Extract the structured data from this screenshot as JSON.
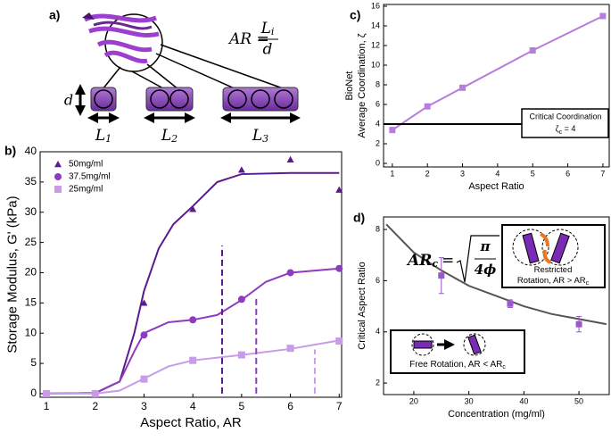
{
  "panel_a": {
    "panel_label": "a)",
    "formula": {
      "lhs": "AR",
      "eq": "=",
      "num": "L",
      "num_sub": "i",
      "den": "d"
    },
    "d_label": "d",
    "lengths": [
      {
        "base": "L",
        "sub": "1"
      },
      {
        "base": "L",
        "sub": "2"
      },
      {
        "base": "L",
        "sub": "3"
      }
    ]
  },
  "chart_data": [
    {
      "type": "scatter",
      "panel_label": "b)",
      "x_label": "Aspect Ratio, AR",
      "y_label": "Storage Modulus, G' (kPa)",
      "xlim": [
        0.87,
        7.05
      ],
      "ylim": [
        -0.6,
        40
      ],
      "xticks": [
        1,
        2,
        3,
        4,
        5,
        6,
        7
      ],
      "yticks": [
        0,
        5,
        10,
        15,
        20,
        25,
        30,
        35,
        40
      ],
      "x": [
        1,
        2,
        3,
        4,
        5,
        6,
        7
      ],
      "series": [
        {
          "name": "50mg/ml",
          "color": "#5c1a8c",
          "marker": "triangle",
          "values": [
            0,
            0,
            15,
            30.5,
            37,
            38.7,
            33.7
          ],
          "fit_x": [
            1,
            2,
            2.5,
            2.8,
            3,
            3.3,
            3.6,
            4,
            4.5,
            5,
            6,
            7
          ],
          "fit_values": [
            0,
            0.1,
            2,
            10,
            17,
            24,
            28,
            31,
            35,
            36.3,
            36.5,
            36.5
          ]
        },
        {
          "name": "37.5mg/ml",
          "color": "#8e3bbf",
          "marker": "circle",
          "values": [
            0,
            0,
            9.7,
            12.2,
            15.6,
            20,
            20.7
          ],
          "fit_x": [
            1,
            2,
            2.5,
            2.8,
            3,
            3.5,
            4,
            4.5,
            5,
            5.5,
            6,
            7
          ],
          "fit_values": [
            0,
            0.1,
            2,
            7,
            10,
            11.8,
            12.2,
            13,
            15.5,
            18.5,
            20,
            20.7
          ]
        },
        {
          "name": "25mg/ml",
          "color": "#c99be8",
          "marker": "square",
          "values": [
            0,
            0,
            2.4,
            5.5,
            6.4,
            7.5,
            8.7
          ],
          "fit_x": [
            1,
            2,
            2.5,
            3,
            3.5,
            4,
            5,
            6,
            7
          ],
          "fit_values": [
            0,
            0,
            0.5,
            2.5,
            4.5,
            5.5,
            6.4,
            7.4,
            8.8
          ]
        }
      ],
      "critical_lines": [
        {
          "x": 4.6,
          "top": 24.5,
          "color": "#5c1a8c"
        },
        {
          "x": 5.3,
          "top": 16,
          "color": "#8e3bbf"
        },
        {
          "x": 6.5,
          "top": 7.3,
          "color": "#c99be8"
        }
      ]
    },
    {
      "type": "line",
      "panel_label": "c)",
      "x_label": "Aspect Ratio",
      "y_label": [
        "BioNet",
        "Average Coordination, ζ"
      ],
      "xlim": [
        0.75,
        7.18
      ],
      "ylim": [
        -0.36,
        16.18
      ],
      "xticks": [
        1,
        2,
        3,
        4,
        5,
        6,
        7
      ],
      "yticks": [
        0,
        2,
        4,
        6,
        8,
        10,
        12,
        14,
        16
      ],
      "x": [
        1,
        2,
        3,
        5,
        7
      ],
      "series": [
        {
          "color": "#b57edc",
          "marker": "square",
          "values": [
            3.4,
            5.8,
            7.7,
            11.5,
            15
          ]
        }
      ],
      "hline": {
        "value": 4,
        "color": "#000000",
        "label": "Critical Coordination",
        "symbol": "ζ",
        "sub": "c",
        "rest": " = 4"
      }
    },
    {
      "type": "scatter",
      "panel_label": "d)",
      "x_label": "Concentration (mg/ml)",
      "y_label": "Critical Aspect Ratio",
      "xlim": [
        14.5,
        55.5
      ],
      "ylim": [
        1.55,
        8.49
      ],
      "xticks": [
        20,
        30,
        40,
        50
      ],
      "yticks": [
        2,
        4,
        6,
        8
      ],
      "x": [
        25,
        37.5,
        50
      ],
      "series": [
        {
          "color": "#9b59c9",
          "marker": "square",
          "values": [
            6.2,
            5.1,
            4.3
          ],
          "errors": [
            0.7,
            0.15,
            0.3
          ],
          "fit_color": "#555555",
          "fit_x": [
            15,
            20,
            25,
            30,
            35,
            40,
            45,
            50,
            55
          ],
          "fit_values": [
            8.2,
            7.1,
            6.4,
            5.8,
            5.4,
            5.0,
            4.7,
            4.5,
            4.3
          ]
        }
      ],
      "formula": {
        "lhs": "AR",
        "sub": "c",
        "eq": "=",
        "num": "π",
        "den": "4ϕ"
      },
      "restricted": {
        "lines": [
          "Restricted",
          "Rotation, AR > AR"
        ],
        "sub": "c"
      },
      "free": {
        "text": "Free Rotation, AR < AR",
        "sub": "c"
      }
    }
  ]
}
